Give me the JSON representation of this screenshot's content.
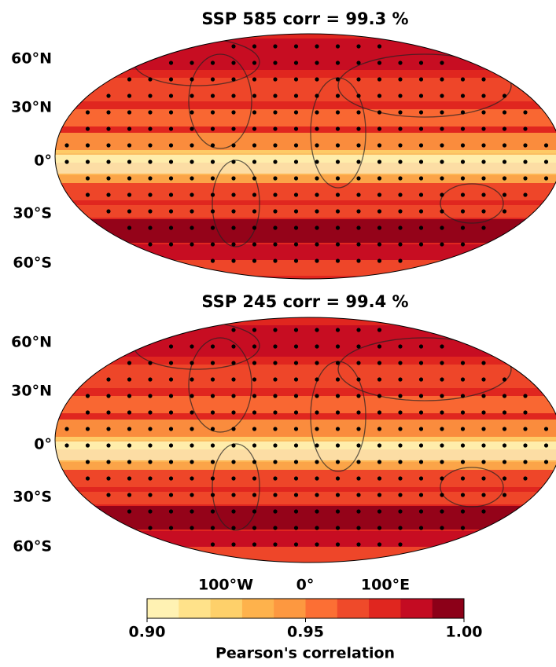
{
  "panels": [
    {
      "title": "SSP 585 corr = 99.3 %",
      "lat_labels": [
        "60°N",
        "30°N",
        "0°",
        "30°S",
        "60°S"
      ]
    },
    {
      "title": "SSP 245 corr = 99.4 %",
      "lat_labels": [
        "60°N",
        "30°N",
        "0°",
        "30°S",
        "60°S"
      ]
    }
  ],
  "lon_labels": [
    "100°W",
    "0°",
    "100°E"
  ],
  "colorbar": {
    "label": "Pearson's correlation",
    "lim": [
      0.9,
      1.0
    ],
    "ticks": [
      {
        "value": 0.9,
        "label": "0.90"
      },
      {
        "value": 0.95,
        "label": "0.95"
      },
      {
        "value": 1.0,
        "label": "1.00"
      }
    ],
    "colors": [
      "#fff2b3",
      "#ffe28a",
      "#fed06a",
      "#feb24c",
      "#fd9840",
      "#fc6f34",
      "#ef4a2a",
      "#e0261f",
      "#c40b22",
      "#8c0018"
    ]
  }
}
